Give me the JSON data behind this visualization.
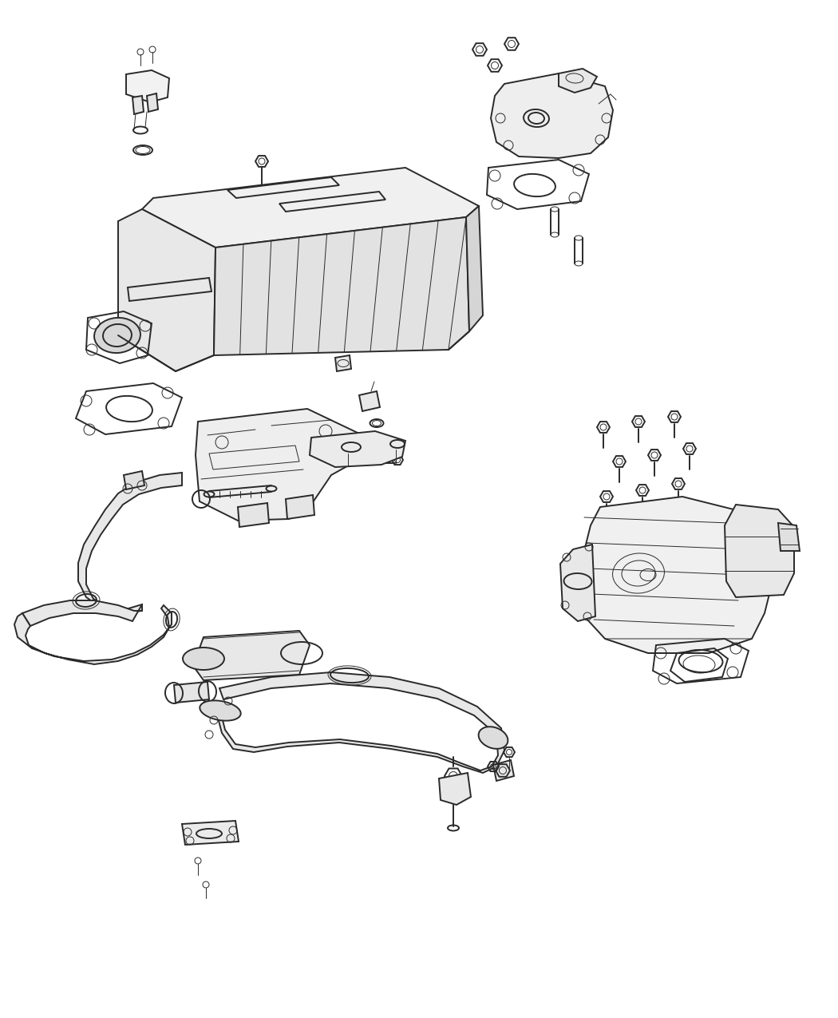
{
  "background_color": "#ffffff",
  "line_color": "#2a2a2a",
  "lw_main": 1.4,
  "lw_thin": 0.7,
  "lw_thick": 2.0,
  "fig_w": 10.5,
  "fig_h": 12.75,
  "dpi": 100
}
